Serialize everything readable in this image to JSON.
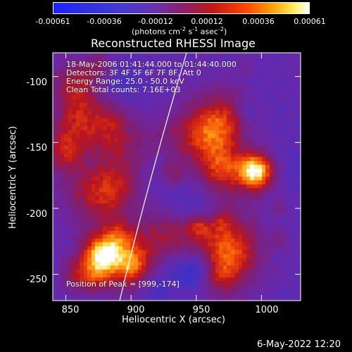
{
  "colorbar": {
    "ticks": [
      "-0.00061",
      "-0.00036",
      "-0.00012",
      "0.00012",
      "0.00036",
      "0.00061"
    ],
    "units_prefix": "(photons cm",
    "units_exp1": "-2",
    "units_mid": " s",
    "units_exp2": "-1",
    "units_mid2": " asec",
    "units_exp3": "-2",
    "units_suffix": ")"
  },
  "image": {
    "title": "Reconstructed RHESSI Image",
    "info": [
      "18-May-2006 01:41:44.000 to 01:44:40.000",
      "Detectors: 3F 4F 5F 6F 7F 8F, Att 0",
      "Energy Range: 25.0 - 50.0 keV",
      "Clean     Total counts: 7.16E+03"
    ],
    "peak": "Position of Peak = [999,-174]"
  },
  "axes": {
    "xlabel": "Heliocentric X (arcsec)",
    "ylabel": "Heliocentric Y (arcsec)",
    "xticks": [
      {
        "label": "850",
        "value": 850
      },
      {
        "label": "900",
        "value": 900
      },
      {
        "label": "950",
        "value": 950
      },
      {
        "label": "1000",
        "value": 1000
      }
    ],
    "yticks": [
      {
        "label": "-100",
        "value": -100
      },
      {
        "label": "-150",
        "value": -150
      },
      {
        "label": "-200",
        "value": -200
      },
      {
        "label": "-250",
        "value": -250
      }
    ],
    "xlim": [
      840,
      1030
    ],
    "ylim": [
      -270,
      -82
    ]
  },
  "footer": {
    "date": "6-May-2022 12:20"
  }
}
